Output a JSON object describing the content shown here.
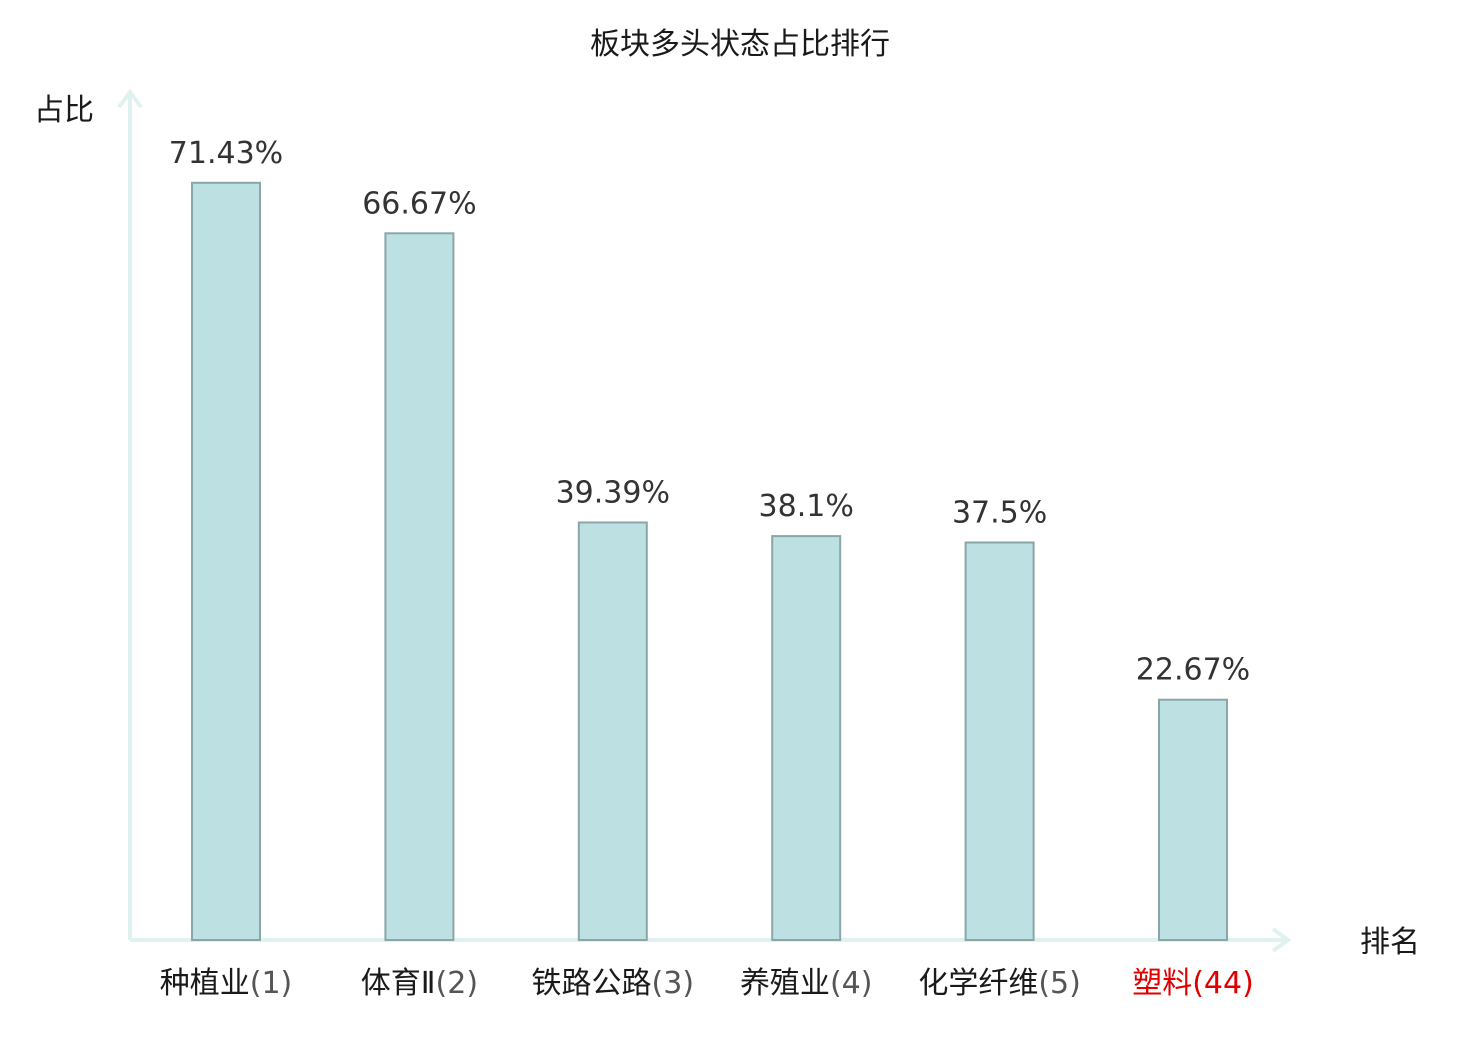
{
  "chart_data": {
    "type": "bar",
    "title": "板块多头状态占比排行",
    "ylabel": "占比",
    "xlabel": "排名",
    "categories": [
      {
        "name": "种植业",
        "rank": "(1)"
      },
      {
        "name": "体育Ⅱ",
        "rank": "(2)"
      },
      {
        "name": "铁路公路",
        "rank": "(3)"
      },
      {
        "name": "养殖业",
        "rank": "(4)"
      },
      {
        "name": "化学纤维",
        "rank": "(5)"
      },
      {
        "name": "塑料",
        "rank": "(44)"
      }
    ],
    "values": [
      71.43,
      66.67,
      39.39,
      38.1,
      37.5,
      22.67
    ],
    "value_labels": [
      "71.43%",
      "66.67%",
      "39.39%",
      "38.1%",
      "37.5%",
      "22.67%"
    ],
    "highlight_index": 5,
    "ylim": [
      0,
      80
    ],
    "grid": false,
    "colors": {
      "bar_fill": "#bde0e3",
      "bar_stroke": "#8aa6a8",
      "axis": "#e0f2ef",
      "category_name": "#1a1a1a",
      "category_rank": "#555555",
      "highlight": "#e00000"
    }
  }
}
